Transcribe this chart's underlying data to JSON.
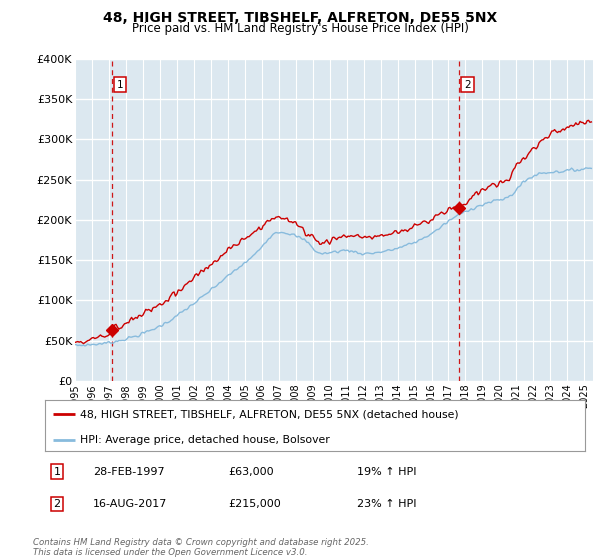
{
  "title_line1": "48, HIGH STREET, TIBSHELF, ALFRETON, DE55 5NX",
  "title_line2": "Price paid vs. HM Land Registry's House Price Index (HPI)",
  "ylabel_ticks": [
    "£0",
    "£50K",
    "£100K",
    "£150K",
    "£200K",
    "£250K",
    "£300K",
    "£350K",
    "£400K"
  ],
  "ylim": [
    0,
    400000
  ],
  "xlim_start": 1995.0,
  "xlim_end": 2025.5,
  "xtick_years": [
    1995,
    1996,
    1997,
    1998,
    1999,
    2000,
    2001,
    2002,
    2003,
    2004,
    2005,
    2006,
    2007,
    2008,
    2009,
    2010,
    2011,
    2012,
    2013,
    2014,
    2015,
    2016,
    2017,
    2018,
    2019,
    2020,
    2021,
    2022,
    2023,
    2024,
    2025
  ],
  "plot_bg_color": "#dce8f0",
  "grid_color": "#ffffff",
  "line1_color": "#cc0000",
  "line2_color": "#88bbdd",
  "marker1_date": 1997.16,
  "marker1_price": 63000,
  "marker2_date": 2017.62,
  "marker2_price": 215000,
  "vline1_x": 1997.16,
  "vline2_x": 2017.62,
  "legend_line1": "48, HIGH STREET, TIBSHELF, ALFRETON, DE55 5NX (detached house)",
  "legend_line2": "HPI: Average price, detached house, Bolsover",
  "note1_num": "1",
  "note1_date": "28-FEB-1997",
  "note1_price": "£63,000",
  "note1_hpi": "19% ↑ HPI",
  "note2_num": "2",
  "note2_date": "16-AUG-2017",
  "note2_price": "£215,000",
  "note2_hpi": "23% ↑ HPI",
  "footnote": "Contains HM Land Registry data © Crown copyright and database right 2025.\nThis data is licensed under the Open Government Licence v3.0."
}
